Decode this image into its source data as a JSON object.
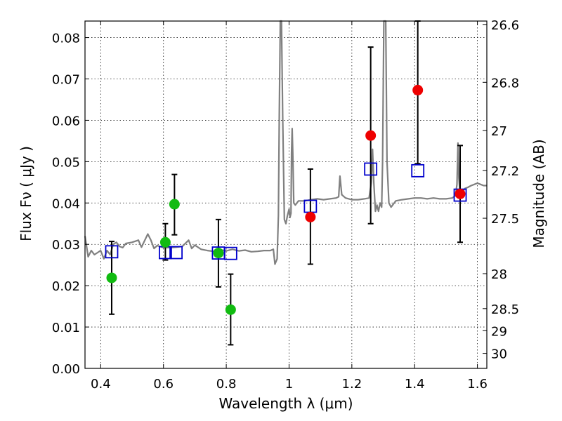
{
  "chart_data": {
    "type": "scatter",
    "xlabel": "Wavelength  λ (μm)",
    "ylabel": "Flux  Fν  ( μJy )",
    "ylabel_right": "Magnitude (AB)",
    "xlim": [
      0.35,
      1.63
    ],
    "ylim": [
      0.0,
      0.084
    ],
    "grid": true,
    "x_ticks": [
      {
        "value": 0.4,
        "label": "0.4"
      },
      {
        "value": 0.6,
        "label": "0.6"
      },
      {
        "value": 0.8,
        "label": "0.8"
      },
      {
        "value": 1.0,
        "label": "1"
      },
      {
        "value": 1.2,
        "label": "1.2"
      },
      {
        "value": 1.4,
        "label": "1.4"
      },
      {
        "value": 1.6,
        "label": "1.6"
      }
    ],
    "y_ticks": [
      {
        "value": 0.0,
        "label": "0.00"
      },
      {
        "value": 0.01,
        "label": "0.01"
      },
      {
        "value": 0.02,
        "label": "0.02"
      },
      {
        "value": 0.03,
        "label": "0.03"
      },
      {
        "value": 0.04,
        "label": "0.04"
      },
      {
        "value": 0.05,
        "label": "0.05"
      },
      {
        "value": 0.06,
        "label": "0.06"
      },
      {
        "value": 0.07,
        "label": "0.07"
      },
      {
        "value": 0.08,
        "label": "0.08"
      }
    ],
    "right_ticks": [
      {
        "mag": 26.6,
        "label": "26.6"
      },
      {
        "mag": 26.8,
        "label": "26.8"
      },
      {
        "mag": 27.0,
        "label": "27"
      },
      {
        "mag": 27.2,
        "label": "27.2"
      },
      {
        "mag": 27.5,
        "label": "27.5"
      },
      {
        "mag": 28.0,
        "label": "28"
      },
      {
        "mag": 28.5,
        "label": "28.5"
      },
      {
        "mag": 29.0,
        "label": "29"
      },
      {
        "mag": 30.0,
        "label": "30"
      }
    ],
    "colors": {
      "green": "#11bb11",
      "red": "#ee0000",
      "model": "#0000cc",
      "spectrum": "#808080",
      "errorbar": "#000000"
    },
    "green_points": [
      {
        "x": 0.435,
        "y": 0.0219,
        "err_low": 0.0131,
        "err_high": 0.0307
      },
      {
        "x": 0.606,
        "y": 0.0305,
        "err_low": 0.0262,
        "err_high": 0.035
      },
      {
        "x": 0.635,
        "y": 0.0397,
        "err_low": 0.0323,
        "err_high": 0.0469
      },
      {
        "x": 0.775,
        "y": 0.0279,
        "err_low": 0.0197,
        "err_high": 0.036
      },
      {
        "x": 0.814,
        "y": 0.0142,
        "err_low": 0.0057,
        "err_high": 0.0228
      }
    ],
    "red_points": [
      {
        "x": 1.068,
        "y": 0.0366,
        "err_low": 0.0252,
        "err_high": 0.0482
      },
      {
        "x": 1.26,
        "y": 0.0563,
        "err_low": 0.035,
        "err_high": 0.0777
      },
      {
        "x": 1.41,
        "y": 0.0673,
        "err_low": 0.0495,
        "err_high": 0.084
      },
      {
        "x": 1.545,
        "y": 0.0422,
        "err_low": 0.0305,
        "err_high": 0.0539
      }
    ],
    "model_points": [
      {
        "x": 0.435,
        "y": 0.0282
      },
      {
        "x": 0.606,
        "y": 0.028
      },
      {
        "x": 0.64,
        "y": 0.028
      },
      {
        "x": 0.775,
        "y": 0.0279
      },
      {
        "x": 0.814,
        "y": 0.0278
      },
      {
        "x": 1.068,
        "y": 0.0392
      },
      {
        "x": 1.26,
        "y": 0.0482
      },
      {
        "x": 1.41,
        "y": 0.0478
      },
      {
        "x": 1.545,
        "y": 0.0419
      }
    ],
    "spectrum": [
      [
        0.35,
        0.032
      ],
      [
        0.36,
        0.027
      ],
      [
        0.37,
        0.0285
      ],
      [
        0.38,
        0.0275
      ],
      [
        0.39,
        0.028
      ],
      [
        0.4,
        0.0285
      ],
      [
        0.41,
        0.0265
      ],
      [
        0.42,
        0.0285
      ],
      [
        0.43,
        0.0275
      ],
      [
        0.44,
        0.03
      ],
      [
        0.45,
        0.0305
      ],
      [
        0.46,
        0.0295
      ],
      [
        0.47,
        0.0292
      ],
      [
        0.48,
        0.0302
      ],
      [
        0.5,
        0.0305
      ],
      [
        0.52,
        0.031
      ],
      [
        0.53,
        0.0293
      ],
      [
        0.55,
        0.0325
      ],
      [
        0.56,
        0.031
      ],
      [
        0.57,
        0.029
      ],
      [
        0.58,
        0.0297
      ],
      [
        0.6,
        0.0292
      ],
      [
        0.62,
        0.0292
      ],
      [
        0.64,
        0.0293
      ],
      [
        0.66,
        0.0295
      ],
      [
        0.68,
        0.031
      ],
      [
        0.69,
        0.029
      ],
      [
        0.7,
        0.0298
      ],
      [
        0.72,
        0.0288
      ],
      [
        0.74,
        0.0285
      ],
      [
        0.76,
        0.0283
      ],
      [
        0.78,
        0.0287
      ],
      [
        0.8,
        0.0284
      ],
      [
        0.82,
        0.0288
      ],
      [
        0.84,
        0.0284
      ],
      [
        0.86,
        0.0286
      ],
      [
        0.88,
        0.0282
      ],
      [
        0.9,
        0.0283
      ],
      [
        0.92,
        0.0285
      ],
      [
        0.94,
        0.0285
      ],
      [
        0.95,
        0.0288
      ],
      [
        0.955,
        0.0252
      ],
      [
        0.962,
        0.0265
      ],
      [
        0.966,
        0.037
      ],
      [
        0.969,
        0.062
      ],
      [
        0.972,
        0.084
      ],
      [
        0.976,
        0.084
      ],
      [
        0.98,
        0.06
      ],
      [
        0.985,
        0.036
      ],
      [
        0.99,
        0.035
      ],
      [
        0.995,
        0.037
      ],
      [
        1.0,
        0.0385
      ],
      [
        1.003,
        0.0365
      ],
      [
        1.006,
        0.0375
      ],
      [
        1.008,
        0.052
      ],
      [
        1.01,
        0.058
      ],
      [
        1.012,
        0.052
      ],
      [
        1.015,
        0.04
      ],
      [
        1.02,
        0.0395
      ],
      [
        1.03,
        0.0405
      ],
      [
        1.05,
        0.0405
      ],
      [
        1.07,
        0.0408
      ],
      [
        1.09,
        0.041
      ],
      [
        1.11,
        0.0408
      ],
      [
        1.13,
        0.041
      ],
      [
        1.15,
        0.0412
      ],
      [
        1.158,
        0.0415
      ],
      [
        1.162,
        0.0465
      ],
      [
        1.168,
        0.042
      ],
      [
        1.18,
        0.0412
      ],
      [
        1.2,
        0.0408
      ],
      [
        1.22,
        0.0408
      ],
      [
        1.24,
        0.041
      ],
      [
        1.255,
        0.0412
      ],
      [
        1.262,
        0.045
      ],
      [
        1.266,
        0.053
      ],
      [
        1.27,
        0.045
      ],
      [
        1.275,
        0.038
      ],
      [
        1.28,
        0.0395
      ],
      [
        1.285,
        0.038
      ],
      [
        1.29,
        0.04
      ],
      [
        1.295,
        0.039
      ],
      [
        1.298,
        0.05
      ],
      [
        1.302,
        0.084
      ],
      [
        1.308,
        0.084
      ],
      [
        1.312,
        0.05
      ],
      [
        1.318,
        0.04
      ],
      [
        1.325,
        0.039
      ],
      [
        1.34,
        0.0405
      ],
      [
        1.36,
        0.0408
      ],
      [
        1.38,
        0.041
      ],
      [
        1.4,
        0.0412
      ],
      [
        1.42,
        0.0412
      ],
      [
        1.44,
        0.041
      ],
      [
        1.46,
        0.0412
      ],
      [
        1.48,
        0.041
      ],
      [
        1.5,
        0.041
      ],
      [
        1.52,
        0.0412
      ],
      [
        1.53,
        0.0418
      ],
      [
        1.535,
        0.0445
      ],
      [
        1.538,
        0.0545
      ],
      [
        1.541,
        0.046
      ],
      [
        1.545,
        0.042
      ],
      [
        1.55,
        0.0422
      ],
      [
        1.56,
        0.0435
      ],
      [
        1.57,
        0.0438
      ],
      [
        1.58,
        0.0442
      ],
      [
        1.59,
        0.0445
      ],
      [
        1.6,
        0.0448
      ],
      [
        1.61,
        0.0445
      ],
      [
        1.62,
        0.0442
      ],
      [
        1.63,
        0.0442
      ]
    ]
  }
}
